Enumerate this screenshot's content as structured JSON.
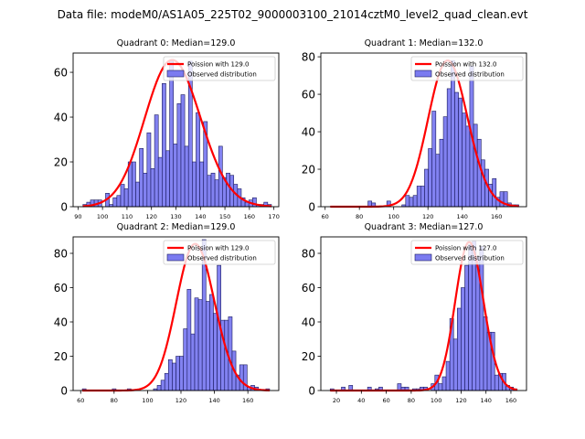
{
  "figure": {
    "suptitle": "Data file: modeM0/AS1A05_225T02_9000003100_21014cztM0_level2_quad_clean.evt",
    "colors": {
      "bar_fill": "#7b7bf0",
      "bar_edge": "#1a1a5e",
      "poisson_line": "#ff0000"
    }
  },
  "chart_data": [
    {
      "type": "bar",
      "title": "Quadrant 0: Median=129.0",
      "xlabel": "",
      "ylabel": "",
      "xlim": [
        88,
        172
      ],
      "ylim": [
        0,
        68.6
      ],
      "xticks": [
        90,
        100,
        110,
        120,
        130,
        140,
        150,
        160,
        170
      ],
      "yticks": [
        0,
        20,
        40,
        60
      ],
      "bin_range": [
        92,
        169
      ],
      "counts": [
        1,
        2,
        3,
        3,
        3,
        0,
        6,
        1,
        4,
        5,
        10,
        8,
        20,
        20,
        11,
        26,
        15,
        33,
        17,
        41,
        22,
        55,
        25,
        65,
        28,
        46,
        50,
        27,
        65,
        20,
        42,
        20,
        38,
        14,
        15,
        12,
        27,
        13,
        15,
        14,
        10,
        8,
        4,
        2,
        3,
        4,
        1,
        1,
        2,
        1
      ],
      "poisson_mean": 129.0,
      "poisson_peak": 65.5,
      "legend": [
        "Poission with 129.0",
        "Observed distribution"
      ],
      "legend_loc": "upper right"
    },
    {
      "type": "bar",
      "title": "Quadrant 1: Median=132.0",
      "xlabel": "",
      "ylabel": "",
      "xlim": [
        57.5,
        177.5
      ],
      "ylim": [
        0,
        82
      ],
      "xticks": [
        60,
        80,
        100,
        120,
        140,
        160
      ],
      "yticks": [
        0,
        20,
        40,
        60,
        80
      ],
      "bin_range": [
        63,
        173
      ],
      "counts": [
        0,
        0,
        0,
        0,
        0,
        0,
        0,
        0,
        0,
        0,
        3,
        2,
        0,
        0,
        0,
        3,
        0,
        0,
        0,
        1,
        6,
        5,
        6,
        11,
        11,
        20,
        31,
        51,
        28,
        36,
        48,
        63,
        78,
        61,
        58,
        50,
        43,
        75,
        44,
        36,
        25,
        20,
        12,
        15,
        5,
        8,
        8,
        2,
        1,
        1
      ],
      "poisson_mean": 132.0,
      "poisson_peak": 78,
      "legend": [
        "Poission with 132.0",
        "Observed distribution"
      ],
      "legend_loc": "upper right"
    },
    {
      "type": "bar",
      "title": "Quadrant 2: Median=129.0",
      "xlabel": "",
      "ylabel": "",
      "xlim": [
        55.5,
        178.5
      ],
      "ylim": [
        0,
        89.6
      ],
      "xticks": [
        60,
        80,
        100,
        120,
        140,
        160
      ],
      "yticks": [
        0,
        20,
        40,
        60,
        80
      ],
      "bin_range": [
        61,
        173
      ],
      "counts": [
        1,
        0,
        0,
        0,
        0,
        0,
        0,
        0,
        1,
        0,
        0,
        0,
        1,
        0,
        0,
        0,
        0,
        0,
        0,
        1,
        3,
        6,
        10,
        18,
        16,
        20,
        20,
        36,
        59,
        33,
        54,
        53,
        88,
        52,
        56,
        45,
        73,
        41,
        41,
        43,
        23,
        9,
        15,
        15,
        2,
        3,
        2,
        0,
        0,
        1
      ],
      "poisson_mean": 129.0,
      "poisson_peak": 85.5,
      "legend": [
        "Poission with 129.0",
        "Observed distribution"
      ],
      "legend_loc": "upper right"
    },
    {
      "type": "bar",
      "title": "Quadrant 3: Median=127.0",
      "xlabel": "",
      "ylabel": "",
      "xlim": [
        7.5,
        172.5
      ],
      "ylim": [
        0,
        89.6
      ],
      "xticks": [
        20,
        40,
        60,
        80,
        100,
        120,
        140,
        160
      ],
      "yticks": [
        0,
        20,
        40,
        60,
        80
      ],
      "bin_range": [
        15,
        165
      ],
      "counts": [
        1,
        0,
        0,
        2,
        0,
        3,
        0,
        0,
        0,
        0,
        2,
        0,
        1,
        2,
        0,
        0,
        0,
        0,
        4,
        2,
        2,
        0,
        1,
        1,
        2,
        2,
        0,
        4,
        9,
        4,
        8,
        17,
        42,
        30,
        48,
        60,
        73,
        85,
        87,
        78,
        84,
        43,
        34,
        34,
        9,
        10,
        10,
        3,
        2,
        1
      ],
      "poisson_mean": 127.0,
      "poisson_peak": 86.5,
      "legend": [
        "Poission with 127.0",
        "Observed distribution"
      ],
      "legend_loc": "upper right"
    }
  ]
}
